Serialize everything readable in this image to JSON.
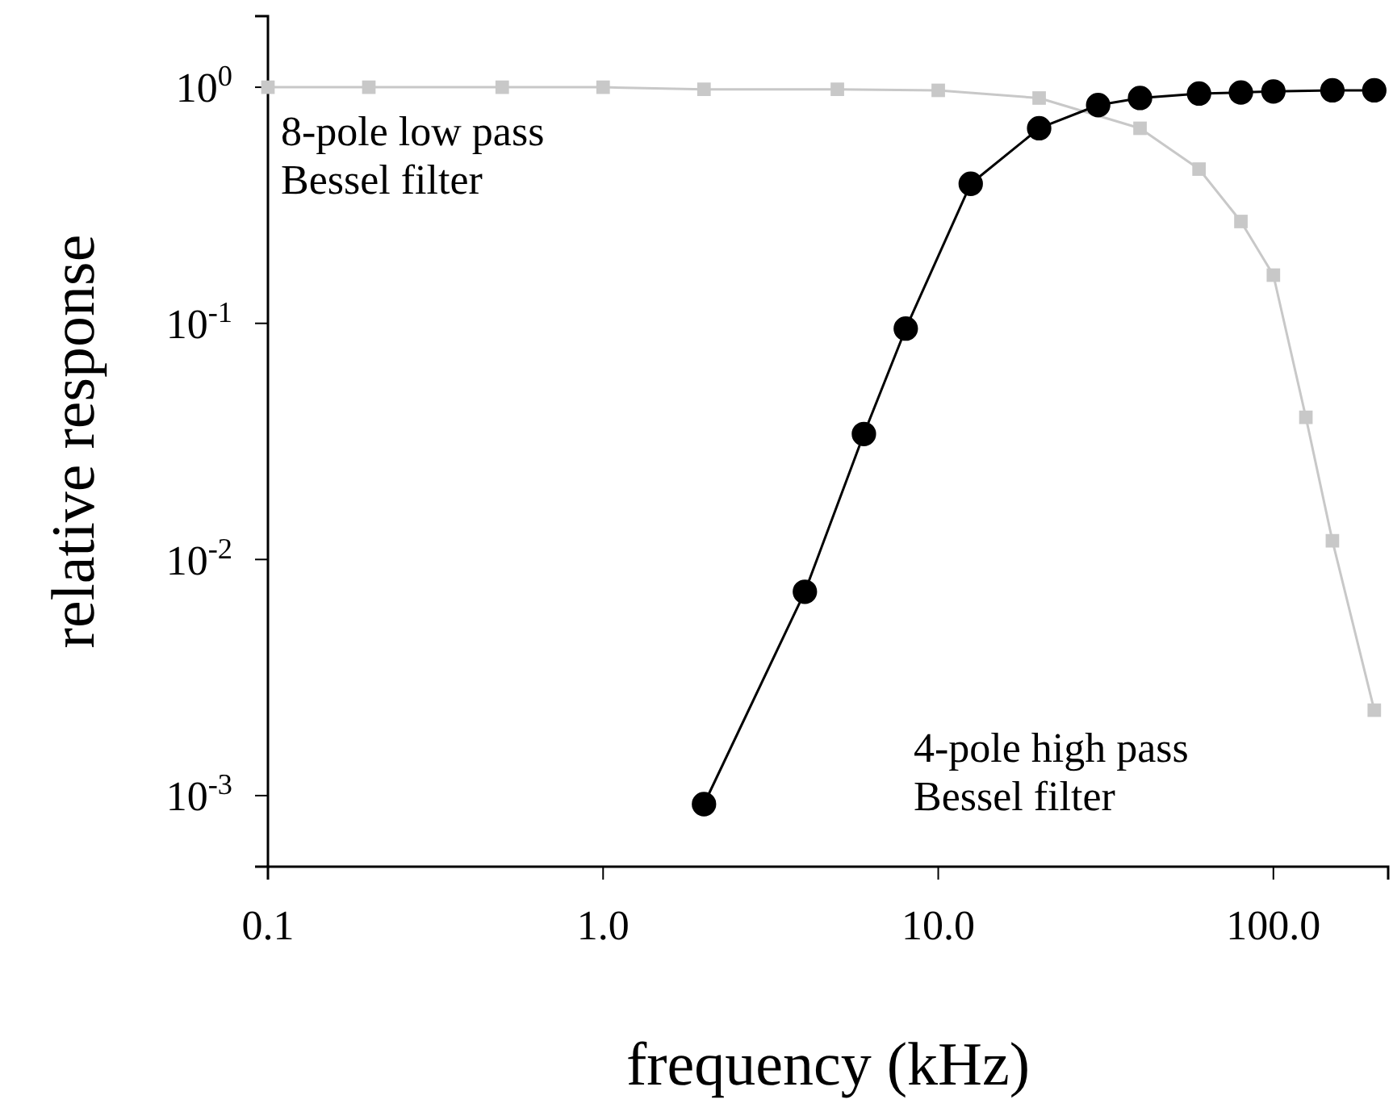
{
  "chart_data": {
    "type": "line",
    "xlabel": "frequency (kHz)",
    "ylabel": "relative response",
    "log": "xy",
    "grid": false,
    "xlim": [
      0.1,
      220
    ],
    "ylim": [
      0.0005,
      2
    ],
    "xticks": [
      0.1,
      {
        "value": 1,
        "label": "1.0"
      },
      {
        "value": 10,
        "label": "10.0"
      },
      {
        "value": 100,
        "label": "100.0"
      }
    ],
    "yticks": [
      {
        "value": 1,
        "label": "10$^{0}$"
      },
      {
        "value": 0.1,
        "label": "10$^{-1}$"
      },
      {
        "value": 0.01,
        "label": "10$^{-2}$"
      },
      {
        "value": 0.001,
        "label": "10$^{-3}$"
      }
    ],
    "series": [
      {
        "color": "#c8c8c8",
        "marker": "square",
        "x": [
          0.1,
          0.2,
          0.5,
          1,
          2,
          5,
          10,
          20,
          40,
          60,
          80,
          100,
          125,
          150,
          200
        ],
        "values": [
          1,
          1,
          1,
          1,
          0.98,
          0.98,
          0.97,
          0.9,
          0.67,
          0.45,
          0.27,
          0.16,
          0.04,
          0.012,
          0.0023
        ]
      },
      {
        "color": "#000000",
        "marker": "circle",
        "x": [
          2,
          4,
          6,
          8,
          12.5,
          20,
          30,
          40,
          60,
          80,
          100,
          150,
          200
        ],
        "values": [
          0.00092,
          0.0073,
          0.034,
          0.095,
          0.39,
          0.67,
          0.84,
          0.9,
          0.94,
          0.95,
          0.96,
          0.97,
          0.97
        ]
      }
    ],
    "annotations": [
      "8-pole low pass\nBessel filter",
      "4-pole high pass\nBessel filter"
    ]
  }
}
